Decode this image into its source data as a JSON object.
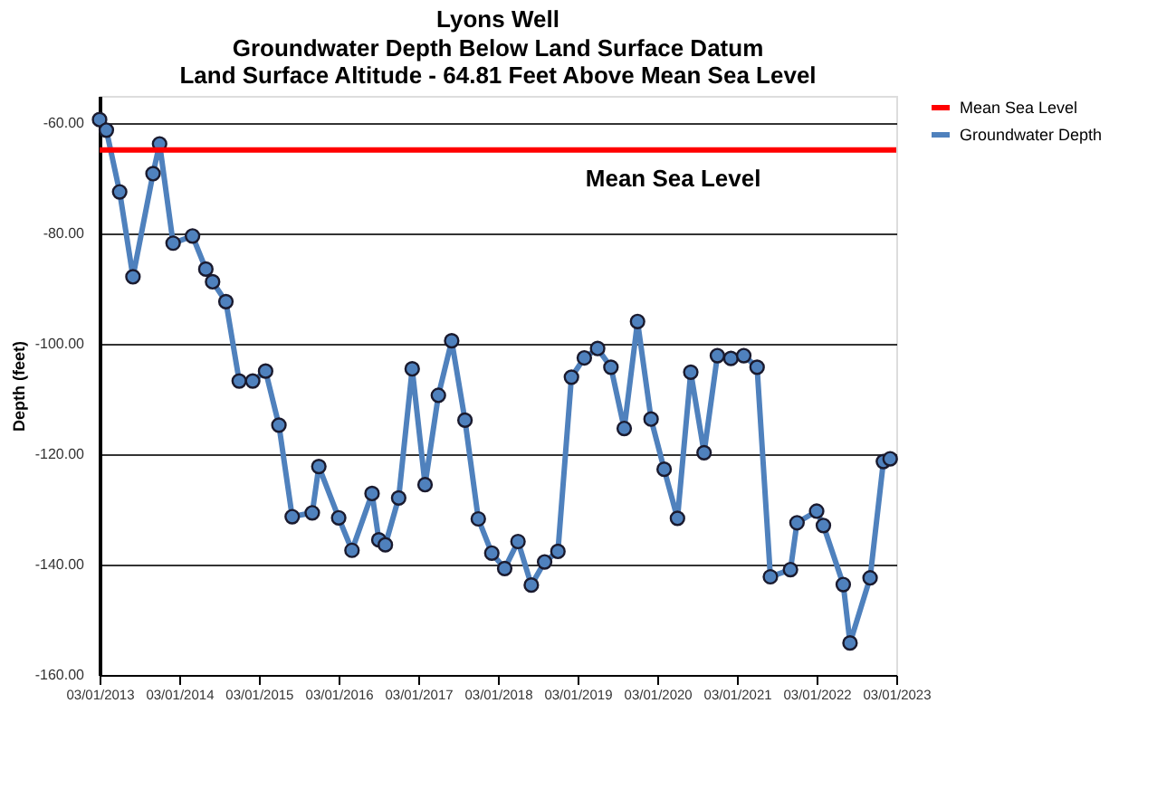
{
  "chart_data": {
    "type": "line",
    "title": "Lyons Well",
    "subtitle": "Groundwater Depth Below Land Surface Datum\nLand Surface Altitude - 64.81 Feet Above Mean Sea Level",
    "ylabel": "Depth (feet)",
    "x": [
      "2013-03",
      "2013-04",
      "2013-06",
      "2013-08",
      "2013-11",
      "2013-12",
      "2014-02",
      "2014-05",
      "2014-07",
      "2014-08",
      "2014-10",
      "2014-12",
      "2015-02",
      "2015-04",
      "2015-06",
      "2015-08",
      "2015-11",
      "2015-12",
      "2016-03",
      "2016-05",
      "2016-08",
      "2016-09",
      "2016-10",
      "2016-12",
      "2017-02",
      "2017-04",
      "2017-06",
      "2017-08",
      "2017-10",
      "2017-12",
      "2018-02",
      "2018-04",
      "2018-06",
      "2018-08",
      "2018-10",
      "2018-12",
      "2019-02",
      "2019-04",
      "2019-06",
      "2019-08",
      "2019-10",
      "2019-12",
      "2020-02",
      "2020-04",
      "2020-06",
      "2020-08",
      "2020-10",
      "2020-12",
      "2021-02",
      "2021-04",
      "2021-06",
      "2021-08",
      "2021-11",
      "2021-12",
      "2022-03",
      "2022-04",
      "2022-07",
      "2022-08",
      "2022-11",
      "2023-01",
      "2023-02"
    ],
    "series": [
      {
        "name": "Groundwater Depth",
        "color": "#4f81bd",
        "values": [
          -59.3,
          -61.2,
          -72.4,
          -87.8,
          -69.1,
          -63.7,
          -81.7,
          -80.4,
          -86.4,
          -88.7,
          -92.3,
          -106.7,
          -106.7,
          -104.9,
          -114.7,
          -131.3,
          -130.6,
          -122.2,
          -131.5,
          -137.4,
          -127.1,
          -135.5,
          -136.4,
          -127.9,
          -104.5,
          -125.5,
          -109.3,
          -99.4,
          -113.8,
          -131.7,
          -137.9,
          -140.7,
          -135.8,
          -143.7,
          -139.5,
          -137.6,
          -106.0,
          -102.5,
          -100.8,
          -104.2,
          -115.3,
          -95.9,
          -113.6,
          -122.7,
          -131.6,
          -105.1,
          -119.7,
          -102.1,
          -102.6,
          -102.1,
          -104.2,
          -142.2,
          -140.9,
          -132.4,
          -130.3,
          -132.9,
          -143.6,
          -154.2,
          -142.4,
          -121.3,
          -120.8
        ]
      }
    ],
    "ref_lines": [
      {
        "axis": "y",
        "value": -64.81,
        "label": "Mean Sea Level",
        "color": "#ff0000",
        "line_style": "solid"
      }
    ],
    "xlim": [
      "2013-03-01",
      "2023-03-01"
    ],
    "xticks": [
      {
        "value": "2013-03-01",
        "label": "03/01/2013"
      },
      {
        "value": "2014-03-01",
        "label": "03/01/2014"
      },
      {
        "value": "2015-03-01",
        "label": "03/01/2015"
      },
      {
        "value": "2016-03-01",
        "label": "03/01/2016"
      },
      {
        "value": "2017-03-01",
        "label": "03/01/2017"
      },
      {
        "value": "2018-03-01",
        "label": "03/01/2018"
      },
      {
        "value": "2019-03-01",
        "label": "03/01/2019"
      },
      {
        "value": "2020-03-01",
        "label": "03/01/2020"
      },
      {
        "value": "2021-03-01",
        "label": "03/01/2021"
      },
      {
        "value": "2022-03-01",
        "label": "03/01/2022"
      },
      {
        "value": "2023-03-01",
        "label": "03/01/2023"
      }
    ],
    "ylim": [
      -160,
      -55
    ],
    "yticks": [
      {
        "value": -60,
        "label": "-60.00"
      },
      {
        "value": -80,
        "label": "-80.00"
      },
      {
        "value": -100,
        "label": "-100.00"
      },
      {
        "value": -120,
        "label": "-120.00"
      },
      {
        "value": -140,
        "label": "-140.00"
      },
      {
        "value": -160,
        "label": "-160.00"
      }
    ],
    "grid": "y",
    "legend": "right",
    "marker": "circle",
    "line_style": "solid"
  }
}
